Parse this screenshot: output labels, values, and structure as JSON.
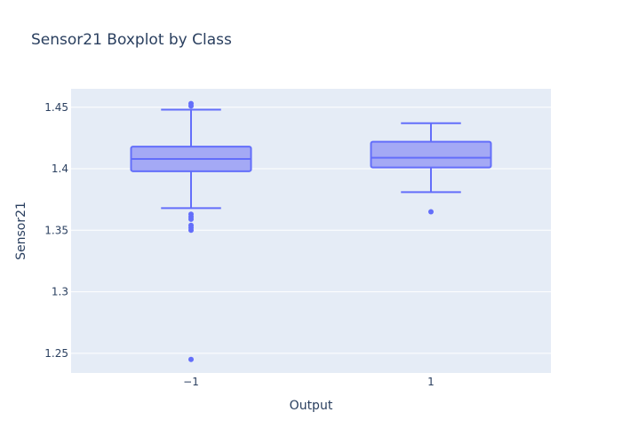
{
  "chart_data": {
    "type": "box",
    "title": "Sensor21 Boxplot by Class",
    "xlabel": "Output",
    "ylabel": "Sensor21",
    "categories": [
      "−1",
      "1"
    ],
    "ylim": [
      1.234,
      1.465
    ],
    "yticks": [
      1.25,
      1.3,
      1.35,
      1.4,
      1.45
    ],
    "ytick_labels": [
      "1.25",
      "1.3",
      "1.35",
      "1.4",
      "1.45"
    ],
    "grid": true,
    "colors": {
      "box_line": "#636efa",
      "box_fill": "#a4a9f5",
      "plot_bg": "#e5ecf6",
      "grid": "#ffffff",
      "text": "#2a3f5f"
    },
    "boxes": [
      {
        "category": "−1",
        "lower_whisker": 1.368,
        "q1": 1.398,
        "median": 1.408,
        "q3": 1.418,
        "upper_whisker": 1.448,
        "outliers": [
          1.453,
          1.451,
          1.363,
          1.361,
          1.359,
          1.354,
          1.352,
          1.35,
          1.245
        ]
      },
      {
        "category": "1",
        "lower_whisker": 1.381,
        "q1": 1.401,
        "median": 1.409,
        "q3": 1.422,
        "upper_whisker": 1.437,
        "outliers": [
          1.365
        ]
      }
    ]
  }
}
